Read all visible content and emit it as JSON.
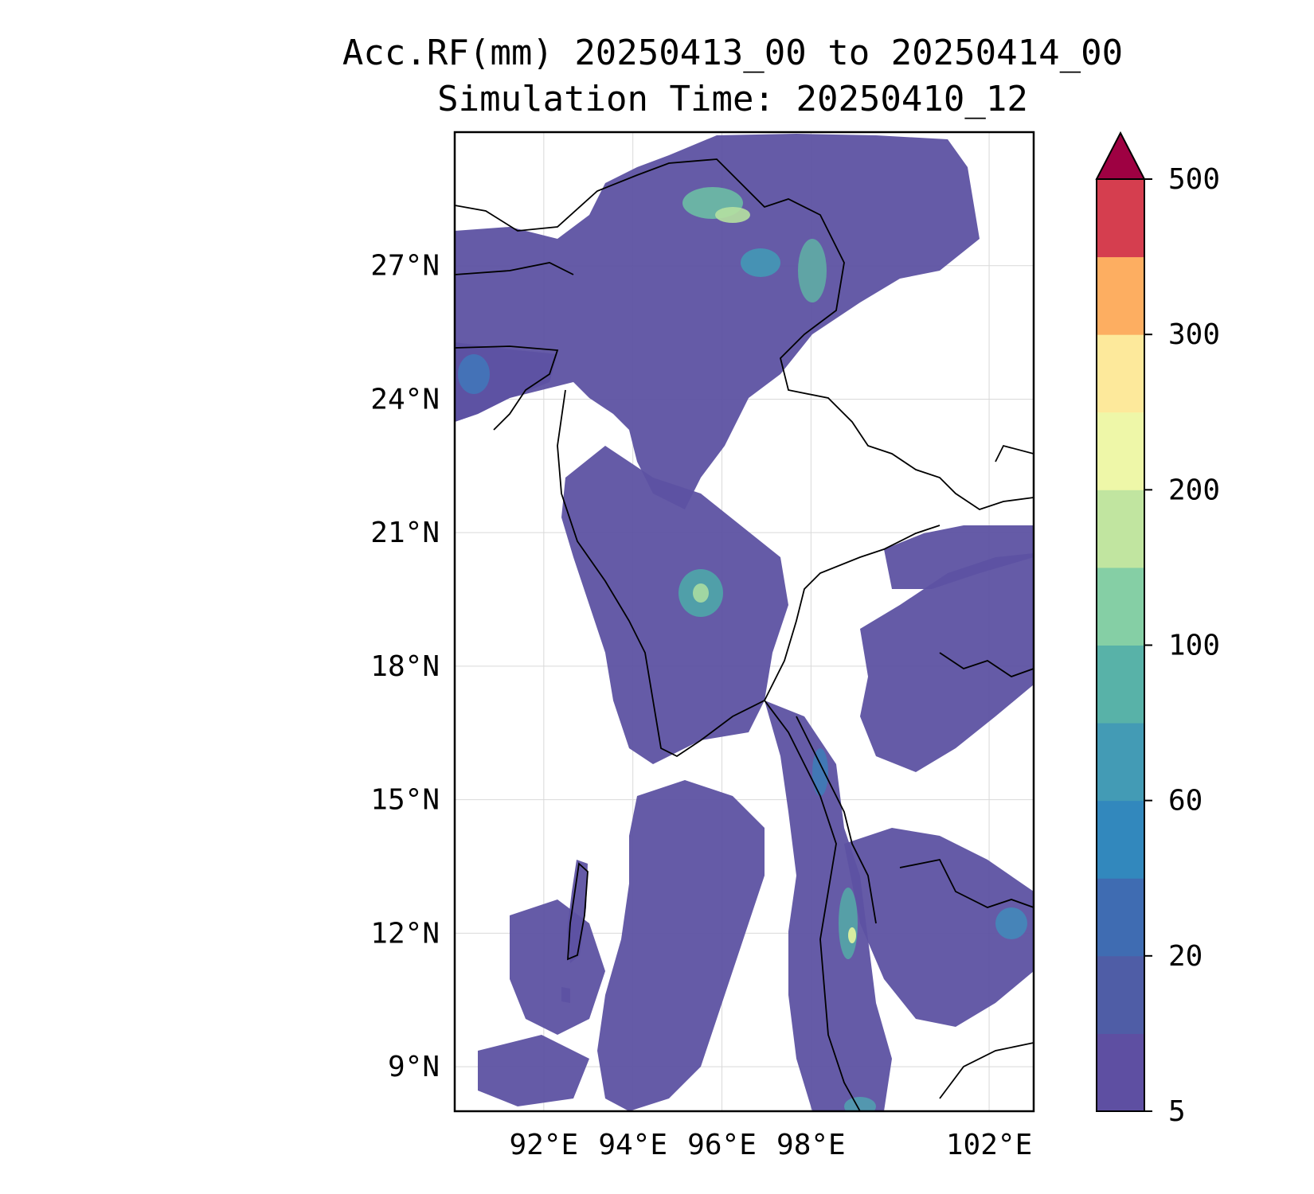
{
  "title": {
    "line1": "Acc.RF(mm) 20250413_00 to 20250414_00",
    "line2": "Simulation Time: 20250410_12"
  },
  "map": {
    "lat_ticks": [
      "27°N",
      "24°N",
      "21°N",
      "18°N",
      "15°N",
      "12°N",
      "9°N"
    ],
    "lon_ticks": [
      "92°E",
      "94°E",
      "96°E",
      "98°E",
      "102°E"
    ],
    "lat_values": [
      27,
      24,
      21,
      18,
      15,
      12,
      9
    ],
    "lon_values": [
      92,
      94,
      96,
      98,
      102
    ],
    "lon_range": [
      90.0,
      103.0
    ],
    "lat_range": [
      8.0,
      30.0
    ],
    "field_color": "#5d52a2",
    "gridlines": true
  },
  "colorbar": {
    "labels": [
      "5",
      "20",
      "60",
      "100",
      "200",
      "300",
      "500"
    ],
    "colors": [
      "#5e4fa2",
      "#4f5da6",
      "#3f6cb2",
      "#3288bd",
      "#439bb5",
      "#58b2a8",
      "#85cfa5",
      "#c1e5a0",
      "#eef7a8",
      "#fde99b",
      "#fdae61",
      "#d53e4f"
    ],
    "extend_color": "#9e0142",
    "extend": "max"
  }
}
